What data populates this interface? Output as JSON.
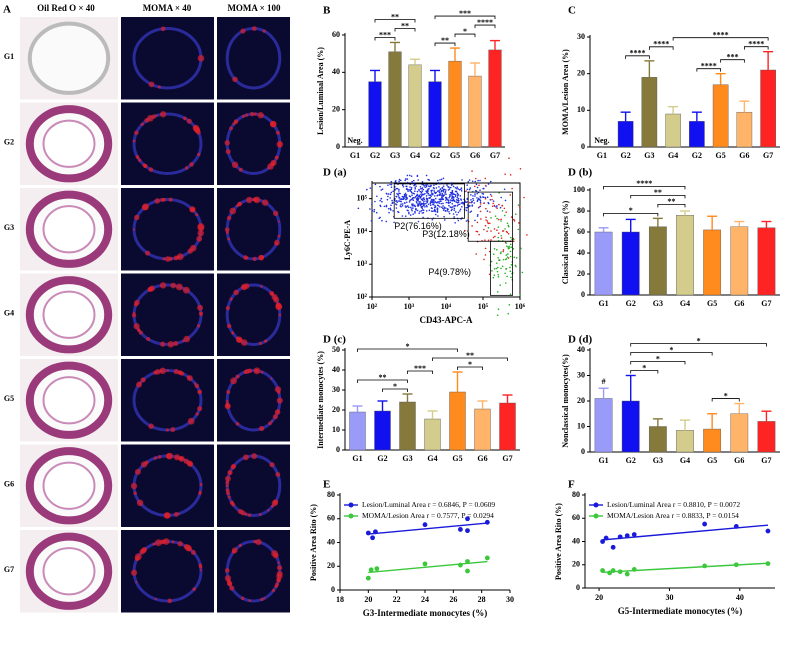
{
  "panel_a": {
    "panel": "A",
    "columns": [
      "Oil Red O × 40",
      "MOMA × 40",
      "MOMA × 100"
    ],
    "rows": [
      "G1",
      "G2",
      "G3",
      "G4",
      "G5",
      "G6",
      "G7"
    ]
  },
  "chart_data": [
    {
      "type": "bar",
      "panel": "B",
      "ylabel": "Lesion/Luminal Area (%)",
      "categories": [
        "G1",
        "G2",
        "G3",
        "G4",
        "G2",
        "G5",
        "G6",
        "G7"
      ],
      "values": [
        null,
        35,
        51,
        44,
        35,
        46,
        38,
        52
      ],
      "errors": [
        null,
        6,
        5,
        3,
        6,
        7,
        7,
        5
      ],
      "value_labels": [
        "Neg.",
        null,
        null,
        null,
        null,
        null,
        null,
        null
      ],
      "colors": [
        null,
        "#1010f0",
        "#857a3c",
        "#d4cc8c",
        "#1010f0",
        "#ff8a1e",
        "#ffb46a",
        "#ff2424"
      ],
      "ylim": [
        0,
        60
      ],
      "yticks": [
        0,
        20,
        40,
        60
      ],
      "brackets": [
        {
          "text": "***",
          "from": 1,
          "to": 2
        },
        {
          "text": "**",
          "from": 2,
          "to": 3
        },
        {
          "text": "**",
          "from": 1,
          "to": 3
        },
        {
          "text": "**",
          "from": 4,
          "to": 5
        },
        {
          "text": "*",
          "from": 5,
          "to": 6
        },
        {
          "text": "****",
          "from": 6,
          "to": 7
        },
        {
          "text": "***",
          "from": 4,
          "to": 7
        }
      ]
    },
    {
      "type": "bar",
      "panel": "C",
      "ylabel": "MOMA/Lesion Area (%)",
      "categories": [
        "G1",
        "G2",
        "G3",
        "G4",
        "G2",
        "G5",
        "G6",
        "G7"
      ],
      "values": [
        null,
        7,
        19,
        9,
        7,
        17,
        9.5,
        21
      ],
      "errors": [
        null,
        2.5,
        4.5,
        2,
        2.5,
        3,
        3,
        5
      ],
      "value_labels": [
        "Neg.",
        null,
        null,
        null,
        null,
        null,
        null,
        null
      ],
      "colors": [
        null,
        "#1010f0",
        "#857a3c",
        "#d4cc8c",
        "#1010f0",
        "#ff8a1e",
        "#ffb46a",
        "#ff2424"
      ],
      "ylim": [
        0,
        30
      ],
      "yticks": [
        0,
        10,
        20,
        30
      ],
      "brackets": [
        {
          "text": "****",
          "from": 1,
          "to": 2
        },
        {
          "text": "****",
          "from": 2,
          "to": 3
        },
        {
          "text": "****",
          "from": 4,
          "to": 5
        },
        {
          "text": "***",
          "from": 5,
          "to": 6
        },
        {
          "text": "****",
          "from": 6,
          "to": 7
        },
        {
          "text": "****",
          "from": 3,
          "to": 7
        }
      ]
    },
    {
      "type": "flow",
      "panel": "D (a)",
      "xlabel": "CD43-APC-A",
      "ylabel": "Ly6C-PE-A",
      "log": true,
      "xlim": [
        100,
        1000000
      ],
      "xticks": [
        {
          "value": 100,
          "label": "10²"
        },
        {
          "value": 1000,
          "label": "10³"
        },
        {
          "value": 10000,
          "label": "10⁴"
        },
        {
          "value": 100000,
          "label": "10⁵"
        },
        {
          "value": 1000000,
          "label": "10⁶"
        }
      ],
      "ylim": [
        100,
        300000
      ],
      "yticks": [
        {
          "value": 100,
          "label": "10²"
        },
        {
          "value": 1000,
          "label": "10³"
        },
        {
          "value": 10000,
          "label": "10⁴"
        },
        {
          "value": 100000,
          "label": "10⁵"
        }
      ],
      "gates": [
        "P2(76.16%)",
        "P3(12.18%)",
        "P4(9.78%)"
      ]
    },
    {
      "type": "bar",
      "panel": "D (b)",
      "ylabel": "Classical monocytes (%)",
      "categories": [
        "G1",
        "G2",
        "G3",
        "G4",
        "G5",
        "G6",
        "G7"
      ],
      "values": [
        60,
        60,
        65,
        76,
        62,
        65,
        64
      ],
      "errors": [
        4,
        12,
        8,
        4,
        13,
        5,
        6
      ],
      "colors": [
        "#9a9af8",
        "#1010f0",
        "#857a3c",
        "#d4cc8c",
        "#ff8a1e",
        "#ffb46a",
        "#ff2424"
      ],
      "ylim": [
        0,
        100
      ],
      "yticks": [
        0,
        20,
        40,
        60,
        80,
        100
      ],
      "brackets": [
        {
          "text": "*",
          "from": 0,
          "to": 2
        },
        {
          "text": "**",
          "from": 2,
          "to": 3
        },
        {
          "text": "**",
          "from": 1,
          "to": 3
        },
        {
          "text": "****",
          "from": 0,
          "to": 3
        }
      ]
    },
    {
      "type": "bar",
      "panel": "D (c)",
      "ylabel": "Intermediate monocytes (%)",
      "categories": [
        "G1",
        "G2",
        "G3",
        "G4",
        "G5",
        "G6",
        "G7"
      ],
      "values": [
        19,
        19.5,
        24,
        15.5,
        29,
        20.5,
        23.5
      ],
      "errors": [
        3,
        5,
        4,
        4,
        10,
        4,
        4
      ],
      "colors": [
        "#9a9af8",
        "#1010f0",
        "#857a3c",
        "#d4cc8c",
        "#ff8a1e",
        "#ffb46a",
        "#ff2424"
      ],
      "ylim": [
        0,
        50
      ],
      "yticks": [
        0,
        10,
        20,
        30,
        40,
        50
      ],
      "brackets": [
        {
          "text": "*",
          "from": 1,
          "to": 2
        },
        {
          "text": "**",
          "from": 0,
          "to": 2
        },
        {
          "text": "***",
          "from": 2,
          "to": 3
        },
        {
          "text": "*",
          "from": 4,
          "to": 5
        },
        {
          "text": "**",
          "from": 3,
          "to": 6
        },
        {
          "text": "*",
          "from": 0,
          "to": 4
        }
      ]
    },
    {
      "type": "bar",
      "panel": "D (d)",
      "ylabel": "Nonclassical monocytes(%)",
      "categories": [
        "G1",
        "G2",
        "G3",
        "G4",
        "G5",
        "G6",
        "G7"
      ],
      "values": [
        21,
        20,
        10,
        8.5,
        9,
        15,
        12
      ],
      "errors": [
        4,
        10,
        3,
        4,
        6,
        4,
        4
      ],
      "value_labels": [
        "#",
        null,
        null,
        null,
        null,
        null,
        null
      ],
      "colors": [
        "#9a9af8",
        "#1010f0",
        "#857a3c",
        "#d4cc8c",
        "#ff8a1e",
        "#ffb46a",
        "#ff2424"
      ],
      "ylim": [
        0,
        40
      ],
      "yticks": [
        0,
        10,
        20,
        30,
        40
      ],
      "brackets": [
        {
          "text": "*",
          "from": 1,
          "to": 2
        },
        {
          "text": "*",
          "from": 1,
          "to": 3
        },
        {
          "text": "*",
          "from": 4,
          "to": 5
        },
        {
          "text": "*",
          "from": 1,
          "to": 4
        },
        {
          "text": "*",
          "from": 1,
          "to": 6
        }
      ]
    },
    {
      "type": "scatter",
      "panel": "E",
      "xlabel": "G3-Intermediate monocytes (%)",
      "ylabel": "Positive Area Rito (%)",
      "xlim": [
        18,
        30
      ],
      "xticks": [
        18,
        20,
        22,
        24,
        26,
        28,
        30
      ],
      "ylim": [
        0,
        80
      ],
      "yticks": [
        0,
        20,
        40,
        60,
        80
      ],
      "series": [
        {
          "name": "Lesion/Luminal Area",
          "stats": "r = 0.6846, P = 0.0609",
          "color": "#1a1adb",
          "x": [
            20.0,
            20.3,
            20.5,
            24.0,
            26.5,
            27.0,
            27.0,
            28.4
          ],
          "values": [
            48,
            44,
            49,
            55,
            51,
            60,
            50,
            57
          ]
        },
        {
          "name": "MOMA/Lesion Area",
          "stats": "r = 0.7577, P = 0.0294",
          "color": "#3cc83c",
          "x": [
            20.0,
            20.2,
            20.6,
            24.0,
            26.5,
            27.0,
            27.0,
            28.4
          ],
          "values": [
            10,
            17,
            18,
            22,
            21,
            24,
            16,
            27
          ]
        }
      ]
    },
    {
      "type": "scatter",
      "panel": "F",
      "xlabel": "G5-Intermediate monocytes (%)",
      "ylabel": "Positive Area Rito (%)",
      "xlim": [
        18,
        45
      ],
      "xticks": [
        20,
        30,
        40
      ],
      "ylim": [
        0,
        80
      ],
      "yticks": [
        0,
        20,
        40,
        60,
        80
      ],
      "series": [
        {
          "name": "Lesion/Luminal Area",
          "stats": "r = 0.8810, P = 0.0072",
          "color": "#1a1adb",
          "x": [
            20.5,
            21,
            22,
            23,
            24,
            25,
            35,
            39.5,
            44
          ],
          "values": [
            40,
            43,
            35,
            44,
            45,
            46,
            55,
            53,
            49
          ]
        },
        {
          "name": "MOMA/Lesion Area",
          "stats": "r = 0.8833, P = 0.0154",
          "color": "#3cc83c",
          "x": [
            20.5,
            21.5,
            22,
            23,
            24,
            25,
            35,
            39.5,
            44
          ],
          "values": [
            15,
            13,
            15,
            14,
            12,
            16,
            19,
            20,
            21
          ]
        }
      ]
    }
  ]
}
